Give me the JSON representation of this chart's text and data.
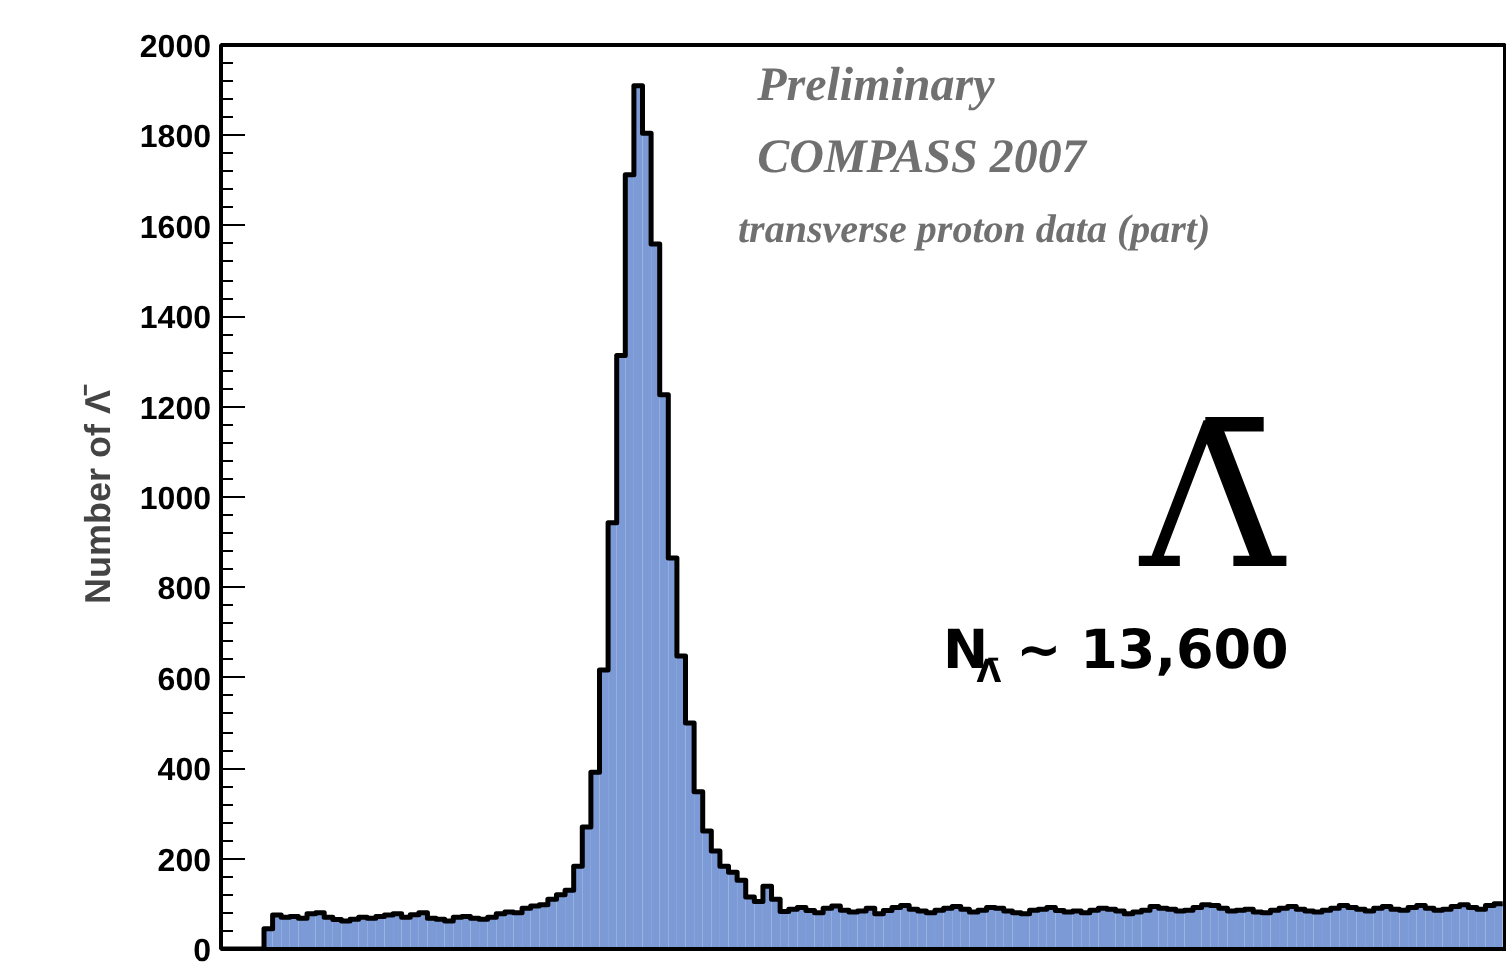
{
  "chart_data": {
    "type": "bar",
    "ylabel": "Number of Λ̄",
    "categories": [
      null,
      null,
      null,
      null,
      null,
      null,
      null,
      null,
      null,
      null,
      null,
      null,
      null,
      null,
      null,
      null,
      null,
      null,
      null,
      null,
      null,
      null,
      null,
      null,
      null,
      null,
      null,
      null,
      null,
      null,
      null,
      null,
      null,
      null,
      null,
      null,
      null,
      null,
      null,
      null,
      null,
      null,
      null,
      null,
      null,
      null,
      null,
      null,
      null,
      null,
      null,
      null,
      null,
      null,
      null,
      null,
      null,
      null,
      null,
      null,
      null,
      null,
      null,
      null,
      null,
      null,
      null,
      null,
      null,
      null,
      null,
      null,
      null,
      null,
      null,
      null,
      null,
      null,
      null,
      null,
      null,
      null,
      null,
      null,
      null,
      null,
      null,
      null,
      null,
      null,
      null,
      null,
      null,
      null,
      null,
      null,
      null,
      null,
      null,
      null,
      null,
      null,
      null,
      null,
      null,
      null,
      null,
      null,
      null,
      null,
      null,
      null,
      null,
      null,
      null,
      null,
      null,
      null,
      null,
      null,
      null,
      null,
      null,
      null,
      null,
      null,
      null,
      null,
      null,
      null,
      null,
      null,
      null,
      null,
      null,
      null,
      null,
      null,
      null,
      null,
      null,
      null,
      null,
      null,
      null,
      null,
      null,
      null,
      null
    ],
    "values": [
      0,
      0,
      0,
      0,
      0,
      45,
      75,
      70,
      72,
      68,
      78,
      80,
      70,
      65,
      62,
      66,
      70,
      68,
      72,
      75,
      78,
      70,
      76,
      80,
      68,
      66,
      62,
      70,
      72,
      68,
      66,
      70,
      78,
      82,
      80,
      90,
      95,
      98,
      110,
      120,
      130,
      183,
      270,
      391,
      617,
      943,
      1313,
      1713,
      1910,
      1805,
      1560,
      1226,
      865,
      648,
      500,
      348,
      261,
      217,
      183,
      170,
      152,
      115,
      105,
      139,
      110,
      83,
      88,
      92,
      85,
      80,
      90,
      95,
      86,
      82,
      84,
      90,
      78,
      85,
      92,
      96,
      88,
      84,
      80,
      86,
      90,
      94,
      88,
      82,
      86,
      92,
      90,
      84,
      80,
      78,
      86,
      88,
      92,
      85,
      82,
      84,
      80,
      86,
      90,
      88,
      84,
      78,
      82,
      86,
      94,
      90,
      88,
      84,
      86,
      92,
      98,
      96,
      90,
      84,
      86,
      88,
      82,
      80,
      86,
      90,
      94,
      88,
      84,
      82,
      86,
      90,
      96,
      92,
      88,
      84,
      90,
      94,
      88,
      86,
      92,
      96,
      90,
      86,
      88,
      94,
      98,
      92,
      88,
      96,
      100
    ],
    "color": "#7b9ad6",
    "ylim": [
      0,
      2000
    ],
    "yticks": [
      0,
      200,
      400,
      600,
      800,
      1000,
      1200,
      1400,
      1600,
      1800,
      2000
    ],
    "annotations": [
      "Preliminary",
      "COMPASS 2007",
      "transverse proton data (part)",
      "Λ̄",
      "N$_{Λ̄}$ ~ 13,600"
    ]
  }
}
